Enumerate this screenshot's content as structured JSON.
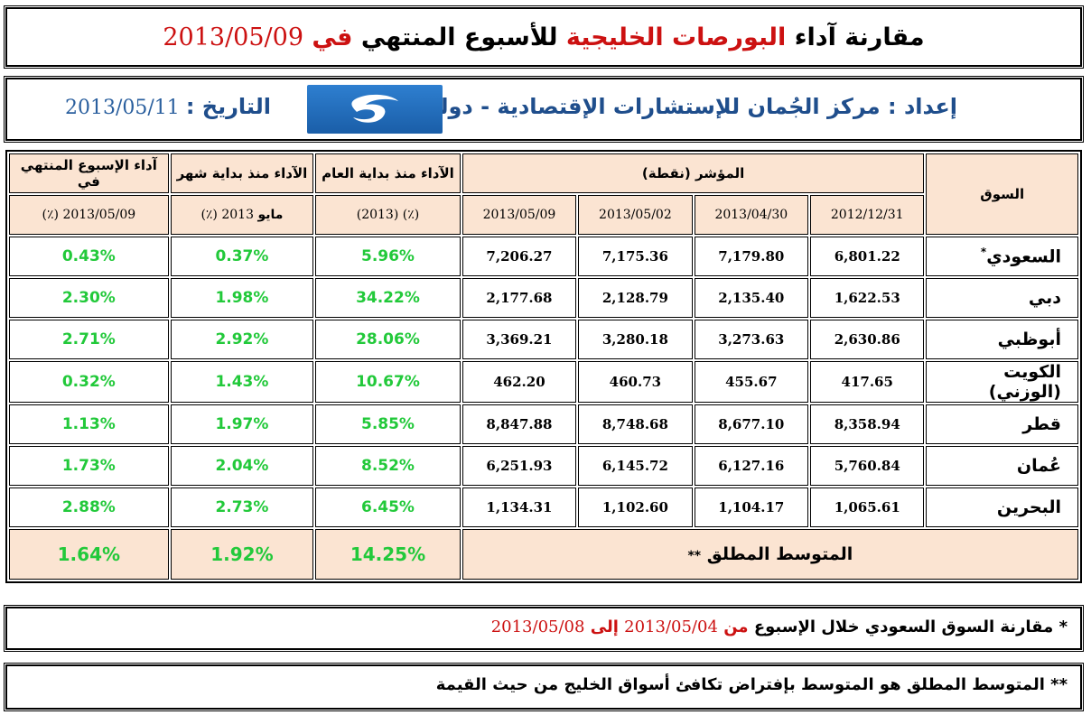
{
  "title": {
    "part1": "مقارنة آداء",
    "part2": "البورصات الخليجية",
    "part3": "للأسبوع المنتهي",
    "part4": "في",
    "date": "2013/05/09"
  },
  "prepared": {
    "label": "إعداد :",
    "org": "مركز الجُمان للإستشارات الإقتصادية - دولة الكويت",
    "date_label": "التاريخ :",
    "date_value": "2013/05/11"
  },
  "colors": {
    "accent_red": "#cc1111",
    "header_bg": "#fbe4d2",
    "positive_green": "#22c93a",
    "title_blue": "#1f4e8c"
  },
  "table": {
    "headers": {
      "market": "السوق",
      "index": "المؤشر (نقطة)",
      "index_dates": [
        "2012/12/31",
        "2013/04/30",
        "2013/05/02",
        "2013/05/09"
      ],
      "ytd": "الآداء منذ بداية العام",
      "ytd_sub": "(٪) (2013)",
      "mtd": "الآداء منذ بداية شهر",
      "mtd_sub_month": "مايو",
      "mtd_sub": "2013 (٪)",
      "week": "آداء الإسبوع المنتهي في",
      "week_sub": "2013/05/09 (٪)"
    },
    "rows": [
      {
        "market": "السعودي",
        "star": "*",
        "v1": "6,801.22",
        "v2": "7,179.80",
        "v3": "7,175.36",
        "v4": "7,206.27",
        "ytd": "5.96%",
        "mtd": "0.37%",
        "week": "0.43%"
      },
      {
        "market": "دبي",
        "star": "",
        "v1": "1,622.53",
        "v2": "2,135.40",
        "v3": "2,128.79",
        "v4": "2,177.68",
        "ytd": "34.22%",
        "mtd": "1.98%",
        "week": "2.30%"
      },
      {
        "market": "أبوظبي",
        "star": "",
        "v1": "2,630.86",
        "v2": "3,273.63",
        "v3": "3,280.18",
        "v4": "3,369.21",
        "ytd": "28.06%",
        "mtd": "2.92%",
        "week": "2.71%"
      },
      {
        "market": "الكويت (الوزني)",
        "star": "",
        "v1": "417.65",
        "v2": "455.67",
        "v3": "460.73",
        "v4": "462.20",
        "ytd": "10.67%",
        "mtd": "1.43%",
        "week": "0.32%"
      },
      {
        "market": "قطر",
        "star": "",
        "v1": "8,358.94",
        "v2": "8,677.10",
        "v3": "8,748.68",
        "v4": "8,847.88",
        "ytd": "5.85%",
        "mtd": "1.97%",
        "week": "1.13%"
      },
      {
        "market": "عُمان",
        "star": "",
        "v1": "5,760.84",
        "v2": "6,127.16",
        "v3": "6,145.72",
        "v4": "6,251.93",
        "ytd": "8.52%",
        "mtd": "2.04%",
        "week": "1.73%"
      },
      {
        "market": "البحرين",
        "star": "",
        "v1": "1,065.61",
        "v2": "1,104.17",
        "v3": "1,102.60",
        "v4": "1,134.31",
        "ytd": "6.45%",
        "mtd": "2.73%",
        "week": "2.88%"
      }
    ],
    "average": {
      "label": "المتوسط المطلق",
      "stars": "**",
      "ytd": "14.25%",
      "mtd": "1.92%",
      "week": "1.64%"
    }
  },
  "note1": {
    "star": "*",
    "text": "مقارنة السوق السعودي خلال الإسبوع",
    "from": "من",
    "date_from": "2013/05/04",
    "to": "إلى",
    "date_to": "2013/05/08"
  },
  "note2": {
    "star": "**",
    "text": "المتوسط المطلق هو المتوسط بإفتراض تكافئ أسواق الخليج من حيث القيمة"
  }
}
